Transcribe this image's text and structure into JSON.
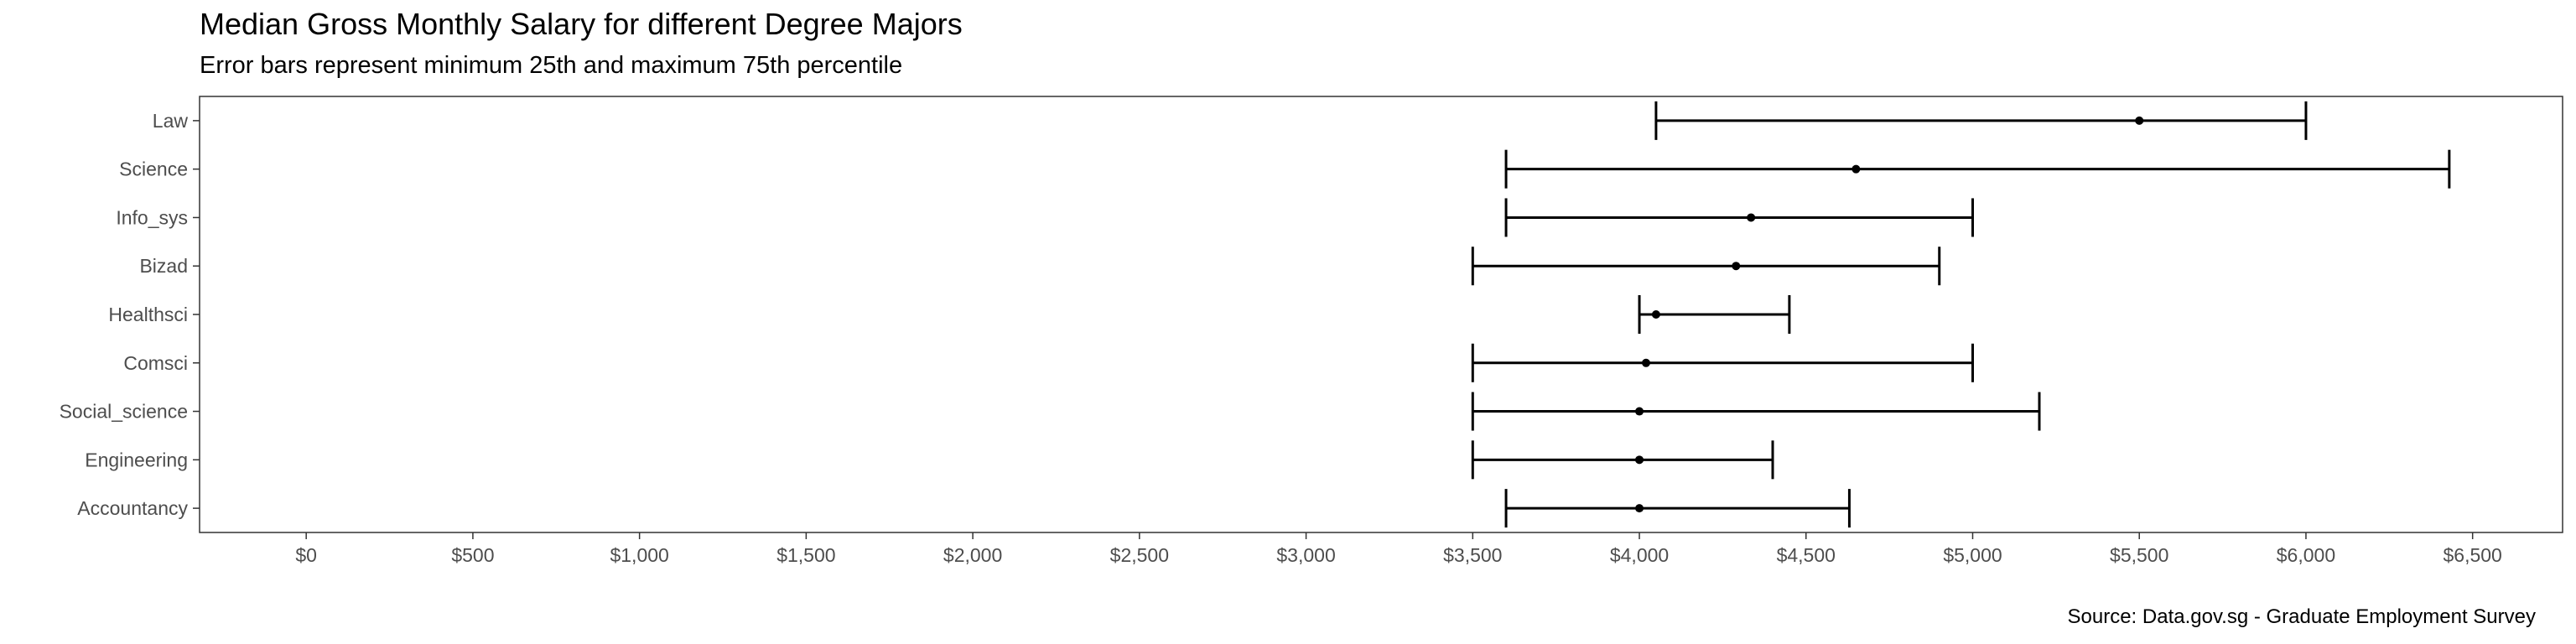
{
  "chart_data": {
    "type": "error-bar",
    "title": "Median Gross Monthly Salary for different Degree Majors",
    "subtitle": "Error bars represent minimum 25th and maximum 75th percentile",
    "caption": "Source: Data.gov.sg - Graduate Employment Survey",
    "xlabel": "",
    "ylabel": "",
    "xlim": [
      -320,
      6770
    ],
    "x_ticks": [
      0,
      500,
      1000,
      1500,
      2000,
      2500,
      3000,
      3500,
      4000,
      4500,
      5000,
      5500,
      6000,
      6500
    ],
    "x_tick_labels": [
      "$0",
      "$500",
      "$1,000",
      "$1,500",
      "$2,000",
      "$2,500",
      "$3,000",
      "$3,500",
      "$4,000",
      "$4,500",
      "$5,000",
      "$5,500",
      "$6,000",
      "$6,500"
    ],
    "grid": false,
    "legend": "none",
    "categories": [
      "Law",
      "Science",
      "Info_sys",
      "Bizad",
      "Healthsci",
      "Comsci",
      "Social_science",
      "Engineering",
      "Accountancy"
    ],
    "median": [
      5500,
      4650,
      4335,
      4290,
      4050,
      4020,
      4000,
      4000,
      4000
    ],
    "min_25th": [
      4050,
      3600,
      3600,
      3500,
      4000,
      3500,
      3500,
      3500,
      3600
    ],
    "max_75th": [
      6000,
      6430,
      5000,
      4900,
      4450,
      5000,
      5200,
      4400,
      4630
    ]
  }
}
